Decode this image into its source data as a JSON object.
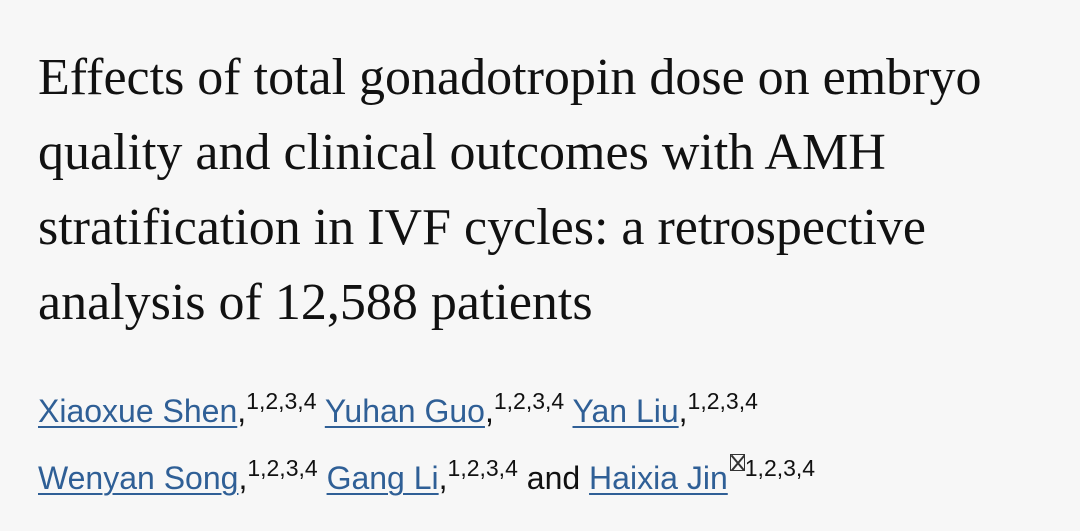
{
  "title": "Effects of total gonadotropin dose on embryo quality and clinical outcomes with AMH stratification in IVF cycles: a retrospective analysis of 12,588 patients",
  "authors": [
    {
      "name": "Xiaoxue Shen",
      "punct": ",",
      "affiliations": "1,2,3,4"
    },
    {
      "name": "Yuhan Guo",
      "punct": ",",
      "affiliations": "1,2,3,4"
    },
    {
      "name": "Yan Liu",
      "punct": ",",
      "affiliations": "1,2,3,4"
    },
    {
      "name": "Wenyan Song",
      "punct": ",",
      "affiliations": "1,2,3,4"
    },
    {
      "name": "Gang Li",
      "punct": ",",
      "affiliations": "1,2,3,4"
    },
    {
      "name": "Haixia Jin",
      "affiliations": "1,2,3,4"
    }
  ],
  "conjunction": "and"
}
